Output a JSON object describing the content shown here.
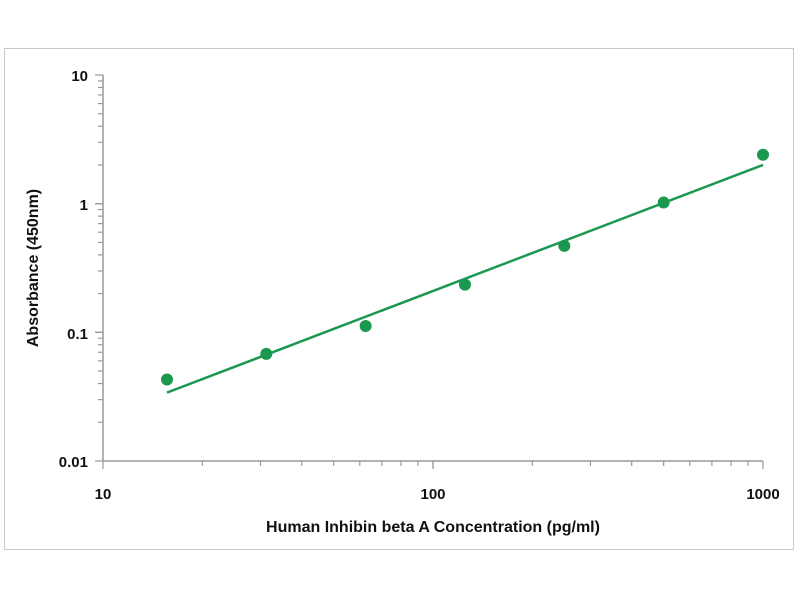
{
  "chart_data": {
    "type": "scatter",
    "title": "",
    "xlabel": "Human Inhibin beta A Concentration (pg/ml)",
    "ylabel": "Absorbance (450nm)",
    "xscale": "log",
    "yscale": "log",
    "xlim": [
      10,
      1000
    ],
    "ylim": [
      0.01,
      10
    ],
    "x_ticks": [
      "10",
      "100",
      "1000"
    ],
    "y_ticks": [
      "10",
      "1",
      "0.1",
      "0.01"
    ],
    "grid": false,
    "series": [
      {
        "x": [
          15.625,
          31.25,
          62.5,
          125,
          250,
          500,
          1000
        ],
        "values": [
          0.043,
          0.068,
          0.112,
          0.235,
          0.47,
          1.02,
          2.4
        ]
      }
    ],
    "fit_line": {
      "x": [
        15.625,
        1000
      ],
      "y": [
        0.034,
        2.0
      ]
    },
    "color": "#1a9850"
  }
}
